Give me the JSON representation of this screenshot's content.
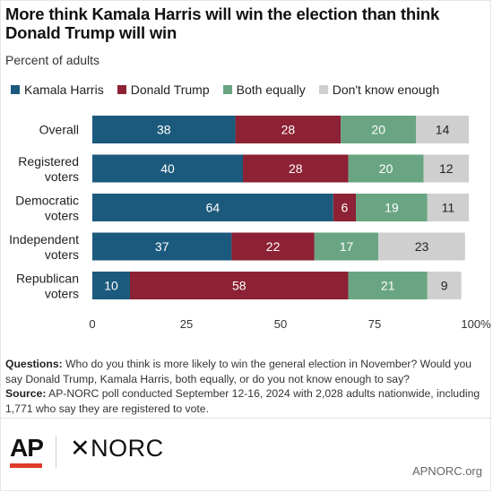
{
  "title": "More think Kamala Harris will win the election than think Donald Trump will win",
  "subtitle": "Percent of adults",
  "footnote": {
    "questions_label": "Questions:",
    "questions_text": "Who do you think is more likely to win the general election in November? Would you say Donald Trump, Kamala Harris, both equally, or do you not know enough to say?",
    "source_label": "Source:",
    "source_text": "AP-NORC poll conducted September 12-16, 2024 with 2,028 adults nationwide, including 1,771 who say they are registered to vote."
  },
  "logos": {
    "ap": "AP",
    "norc": "NORC",
    "norc_mark": "✕"
  },
  "site": "APNORC.org",
  "colors": {
    "Kamala Harris": "#1c5a7d",
    "Donald Trump": "#8c2233",
    "Both equally": "#6aa583",
    "Don't know enough": "#cfcfcf"
  },
  "chart_data": {
    "type": "bar",
    "orientation": "horizontal",
    "stacked": true,
    "categories": [
      [
        "Overall"
      ],
      [
        "Registered",
        "voters"
      ],
      [
        "Democratic",
        "voters"
      ],
      [
        "Independent",
        "voters"
      ],
      [
        "Republican",
        "voters"
      ]
    ],
    "series": [
      {
        "name": "Kamala Harris",
        "values": [
          38,
          40,
          64,
          37,
          10
        ]
      },
      {
        "name": "Donald Trump",
        "values": [
          28,
          28,
          6,
          22,
          58
        ]
      },
      {
        "name": "Both equally",
        "values": [
          20,
          20,
          19,
          17,
          21
        ]
      },
      {
        "name": "Don't know enough",
        "values": [
          14,
          12,
          11,
          23,
          9
        ]
      }
    ],
    "xlim": [
      0,
      100
    ],
    "xticks": [
      "0",
      "25",
      "50",
      "75",
      "100%"
    ],
    "xtick_values": [
      0,
      25,
      50,
      75,
      100
    ],
    "legend_position": "top-left",
    "grid": false
  }
}
